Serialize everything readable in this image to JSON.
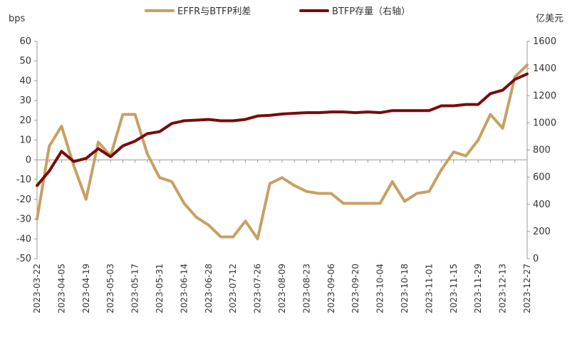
{
  "chart_data": {
    "type": "line",
    "left_axis_unit": "bps",
    "right_axis_unit": "亿美元",
    "ylim_left": [
      -50,
      60
    ],
    "yticks_left": [
      60,
      50,
      40,
      30,
      20,
      10,
      0,
      -10,
      -20,
      -30,
      -40,
      -50
    ],
    "ylim_right": [
      0,
      1600
    ],
    "yticks_right": [
      1600,
      1400,
      1200,
      1000,
      800,
      600,
      400,
      200,
      0
    ],
    "x_labels": [
      "2023-03-22",
      "2023-04-05",
      "2023-04-19",
      "2023-05-03",
      "2023-05-17",
      "2023-05-31",
      "2023-06-14",
      "2023-06-28",
      "2023-07-12",
      "2023-07-26",
      "2023-08-09",
      "2023-08-23",
      "2023-09-06",
      "2023-09-20",
      "2023-10-04",
      "2023-10-18",
      "2023-11-01",
      "2023-11-15",
      "2023-11-29",
      "2023-12-13",
      "2023-12-27"
    ],
    "x_label_every": 2,
    "x": [
      "2023-03-22",
      "2023-03-29",
      "2023-04-05",
      "2023-04-12",
      "2023-04-19",
      "2023-04-26",
      "2023-05-03",
      "2023-05-10",
      "2023-05-17",
      "2023-05-24",
      "2023-05-31",
      "2023-06-07",
      "2023-06-14",
      "2023-06-21",
      "2023-06-28",
      "2023-07-05",
      "2023-07-12",
      "2023-07-19",
      "2023-07-26",
      "2023-08-02",
      "2023-08-09",
      "2023-08-16",
      "2023-08-23",
      "2023-08-30",
      "2023-09-06",
      "2023-09-13",
      "2023-09-20",
      "2023-09-27",
      "2023-10-04",
      "2023-10-11",
      "2023-10-18",
      "2023-10-25",
      "2023-11-01",
      "2023-11-08",
      "2023-11-15",
      "2023-11-22",
      "2023-11-29",
      "2023-12-06",
      "2023-12-13",
      "2023-12-20",
      "2023-12-27"
    ],
    "series": [
      {
        "name": "EFFR与BTFP利差",
        "color": "#c8a063",
        "axis": "left",
        "values": [
          -30,
          7,
          17,
          -3,
          -20,
          9,
          2,
          23,
          23,
          3,
          -9,
          -11,
          -22,
          -29,
          -33,
          -39,
          -39,
          -31,
          -40,
          -12,
          -9,
          -13,
          -16,
          -17,
          -17,
          -22,
          -22,
          -22,
          -22,
          -11,
          -21,
          -17,
          -16,
          -5,
          4,
          2,
          10,
          23,
          16,
          42,
          48
        ]
      },
      {
        "name": "BTFP存量（右轴）",
        "color": "#7b0a0a",
        "axis": "right",
        "values": [
          538,
          645,
          790,
          715,
          738,
          810,
          750,
          830,
          865,
          920,
          935,
          995,
          1015,
          1020,
          1025,
          1015,
          1015,
          1025,
          1050,
          1055,
          1065,
          1070,
          1075,
          1075,
          1080,
          1080,
          1075,
          1080,
          1075,
          1090,
          1090,
          1090,
          1090,
          1125,
          1125,
          1135,
          1135,
          1215,
          1240,
          1320,
          1360
        ]
      }
    ],
    "grid": false,
    "legend_position": "top"
  }
}
